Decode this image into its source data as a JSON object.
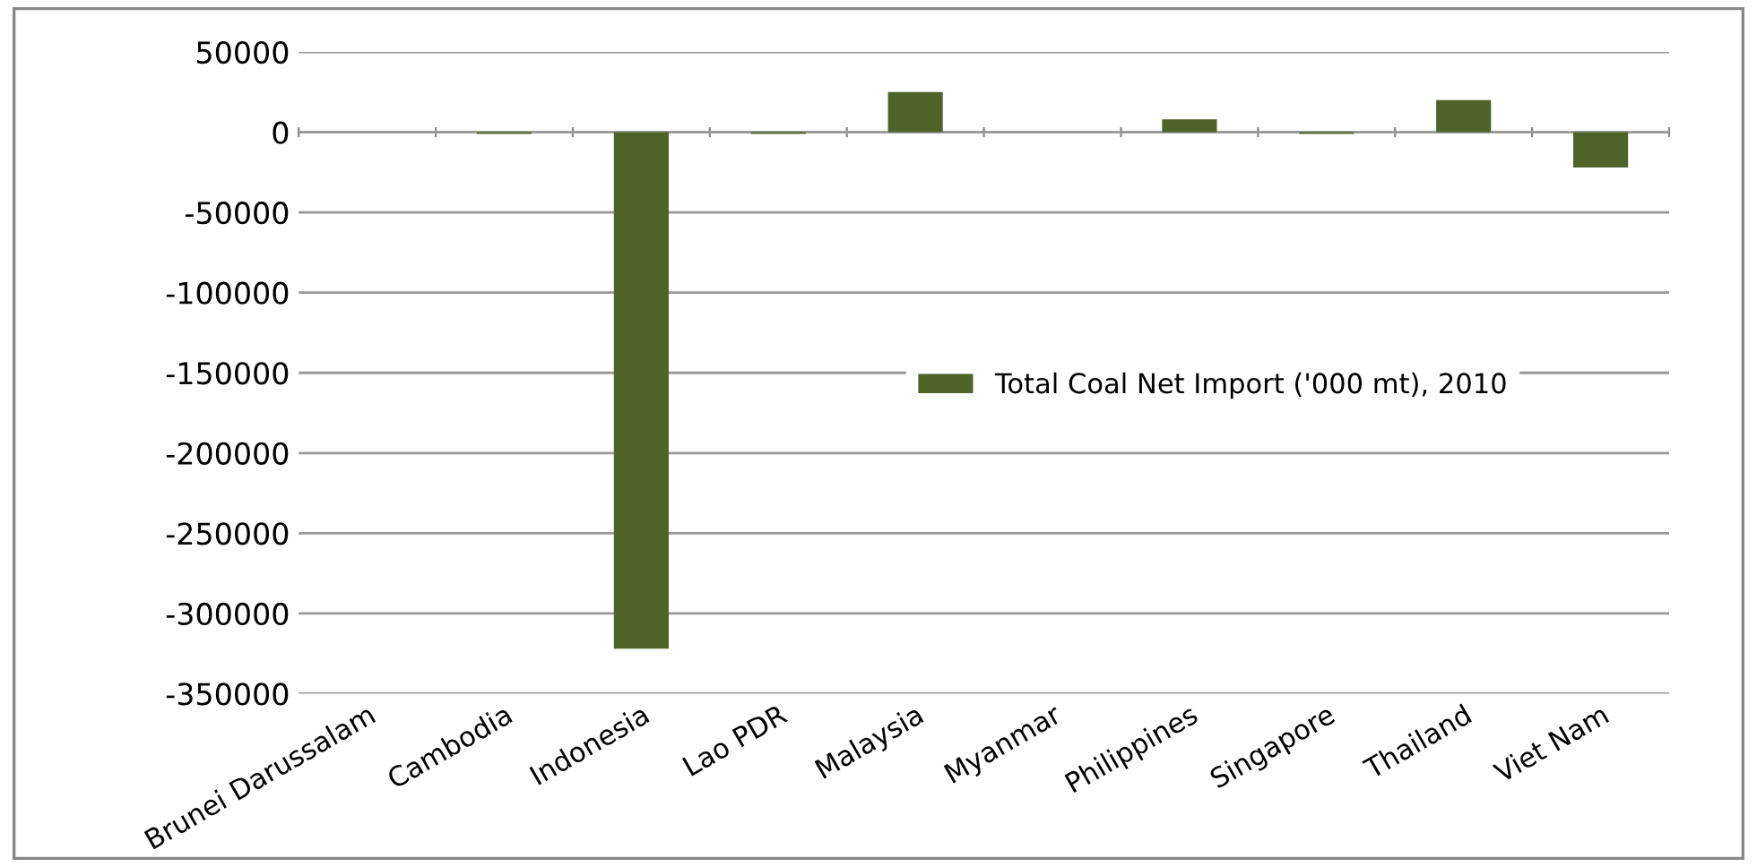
{
  "chart_data": {
    "type": "bar",
    "categories": [
      "Brunei Darussalam",
      "Cambodia",
      "Indonesia",
      "Lao PDR",
      "Malaysia",
      "Myanmar",
      "Philippines",
      "Singapore",
      "Thailand",
      "Viet Nam"
    ],
    "series": [
      {
        "name": "Total Coal Net Import ('000 mt), 2010",
        "color": "#4f6228",
        "values": [
          0,
          -1000,
          -322000,
          -1000,
          25000,
          0,
          8000,
          -1000,
          20000,
          -22000
        ]
      }
    ],
    "ylim": [
      -350000,
      50000
    ],
    "yticks": [
      -350000,
      -300000,
      -250000,
      -200000,
      -150000,
      -100000,
      -50000,
      0,
      50000
    ],
    "grid": "y",
    "legend": "right"
  }
}
